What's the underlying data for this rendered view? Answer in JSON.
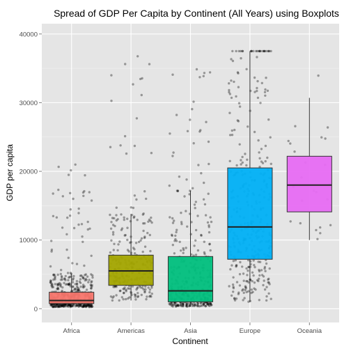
{
  "chart_data": {
    "type": "boxplot",
    "title": "Spread of GDP Per Capita by Continent (All Years) using Boxplots",
    "xlabel": "Continent",
    "ylabel": "GDP per capita",
    "ylim": [
      -2000,
      41500
    ],
    "y_ticks": [
      0,
      10000,
      20000,
      30000,
      40000
    ],
    "grid": true,
    "jitter_points": true,
    "categories": [
      "Africa",
      "Americas",
      "Asia",
      "Europe",
      "Oceania"
    ],
    "series": [
      {
        "category": "Africa",
        "color": "#F8766D",
        "min": 250,
        "q1": 750,
        "median": 1200,
        "q3": 2400,
        "max": 5100
      },
      {
        "category": "Americas",
        "color": "#A3A500",
        "min": 1200,
        "q1": 3400,
        "median": 5500,
        "q3": 7800,
        "max": 13800
      },
      {
        "category": "Asia",
        "color": "#00BF7D",
        "min": 300,
        "q1": 1000,
        "median": 2600,
        "q3": 7600,
        "max": 17200
      },
      {
        "category": "Europe",
        "color": "#00B0F6",
        "min": 1000,
        "q1": 7200,
        "median": 11900,
        "q3": 20500,
        "max": 37500
      },
      {
        "category": "Oceania",
        "color": "#E76BF3",
        "min": 10000,
        "q1": 14100,
        "median": 18000,
        "q3": 22200,
        "max": 30700
      }
    ],
    "outlier_tops": {
      "Africa": 22000,
      "Americas": 39000,
      "Asia": 39800,
      "Europe": 37500,
      "Oceania": 34500
    }
  }
}
